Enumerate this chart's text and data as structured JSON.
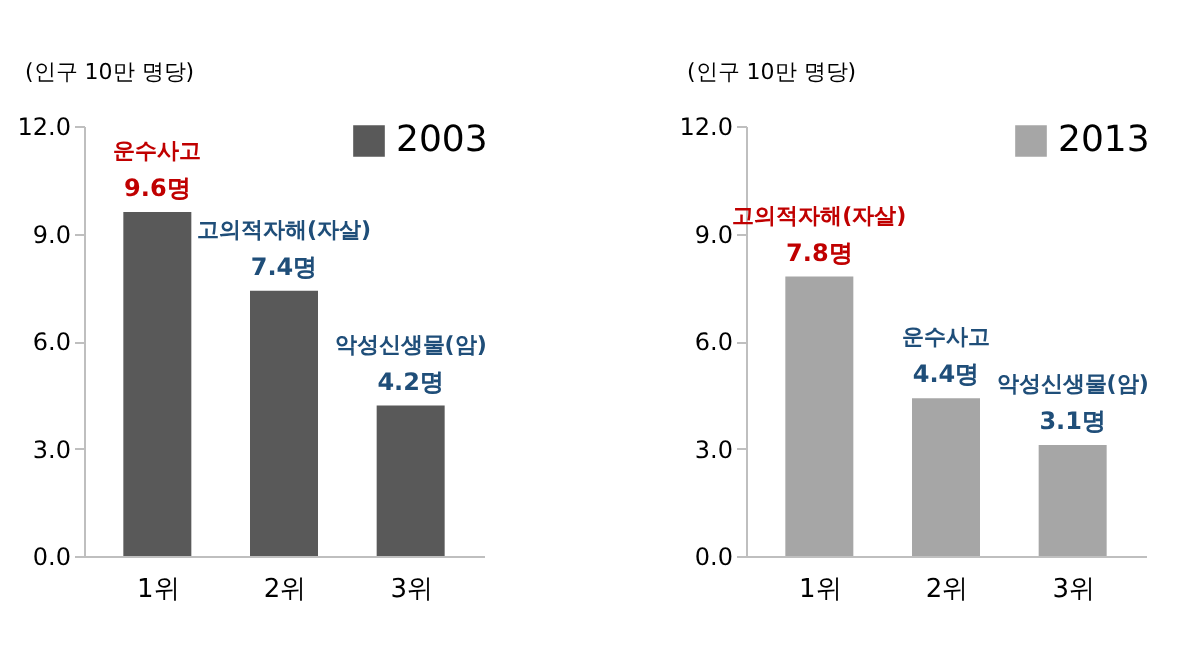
{
  "chart_data": [
    {
      "type": "bar",
      "ylabel": "(인구 10만 명당)",
      "categories": [
        "1위",
        "2위",
        "3위"
      ],
      "series": [
        {
          "name": "2003",
          "color": "#595959",
          "values": [
            9.6,
            7.4,
            4.2
          ]
        }
      ],
      "value_labels": [
        "9.6명",
        "7.4명",
        "4.2명"
      ],
      "annotations": [
        {
          "text": "운수사고",
          "x": "1위",
          "y": 9.6
        },
        {
          "text": "고의적자해(자살)",
          "x": "2위",
          "y": 7.4
        },
        {
          "text": "악성신생물(암)",
          "x": "3위",
          "y": 4.2
        }
      ],
      "ylim": [
        0,
        12
      ],
      "yticks": [
        {
          "value": 0,
          "label": "0.0"
        },
        {
          "value": 3,
          "label": "3.0"
        },
        {
          "value": 6,
          "label": "6.0"
        },
        {
          "value": 9,
          "label": "9.0"
        },
        {
          "value": 12,
          "label": "12.0"
        }
      ],
      "legend": "top right",
      "grid": false
    },
    {
      "type": "bar",
      "ylabel": "(인구 10만 명당)",
      "categories": [
        "1위",
        "2위",
        "3위"
      ],
      "series": [
        {
          "name": "2013",
          "color": "#a6a6a6",
          "values": [
            7.8,
            4.4,
            3.1
          ]
        }
      ],
      "value_labels": [
        "7.8명",
        "4.4명",
        "3.1명"
      ],
      "annotations": [
        {
          "text": "고의적자해(자살)",
          "x": "1위",
          "y": 7.8
        },
        {
          "text": "운수사고",
          "x": "2위",
          "y": 4.4
        },
        {
          "text": "악성신생물(암)",
          "x": "3위",
          "y": 3.1
        }
      ],
      "ylim": [
        0,
        12
      ],
      "yticks": [
        {
          "value": 0,
          "label": "0.0"
        },
        {
          "value": 3,
          "label": "3.0"
        },
        {
          "value": 6,
          "label": "6.0"
        },
        {
          "value": 9,
          "label": "9.0"
        },
        {
          "value": 12,
          "label": "12.0"
        }
      ],
      "legend": "top right",
      "grid": false
    }
  ]
}
